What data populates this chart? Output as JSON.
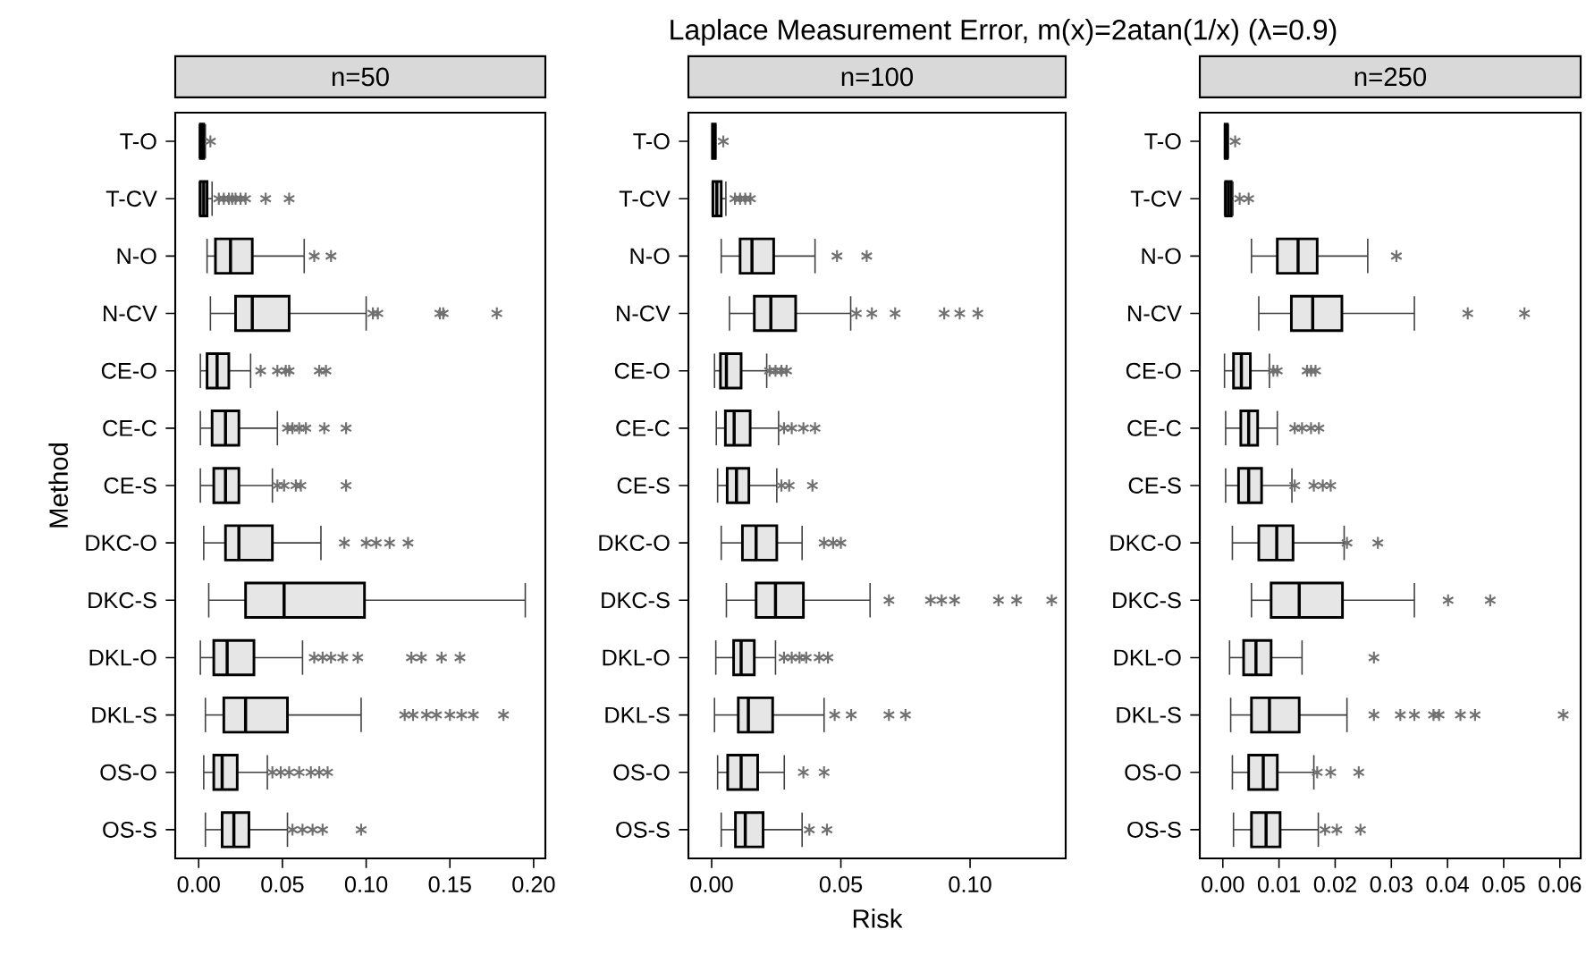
{
  "chart_data": [
    {
      "type": "box",
      "subtitle": "n=50",
      "ylabel": "Method",
      "orientation": "horizontal",
      "color": "#e6e6e6",
      "marker": "star",
      "categories": [
        "T-O",
        "T-CV",
        "N-O",
        "N-CV",
        "CE-O",
        "CE-C",
        "CE-S",
        "DKC-O",
        "DKC-S",
        "DKL-O",
        "DKL-S",
        "OS-O",
        "OS-S"
      ],
      "xlim": [
        -0.014,
        0.207
      ],
      "xticks": [
        {
          "value": 0,
          "label": "0.00"
        },
        {
          "value": 0.05,
          "label": "0.05"
        },
        {
          "value": 0.1,
          "label": "0.10"
        },
        {
          "value": 0.15,
          "label": "0.15"
        },
        {
          "value": 0.2,
          "label": "0.20"
        }
      ],
      "boxes": [
        {
          "low": 0.0003,
          "q1": 0.001,
          "median": 0.002,
          "q3": 0.003,
          "high": 0.004,
          "outliers": [
            0.007
          ]
        },
        {
          "low": 0.0003,
          "q1": 0.001,
          "median": 0.003,
          "q3": 0.005,
          "high": 0.008,
          "outliers": [
            0.012,
            0.015,
            0.018,
            0.02,
            0.022,
            0.025,
            0.028,
            0.04,
            0.054
          ]
        },
        {
          "low": 0.005,
          "q1": 0.01,
          "median": 0.019,
          "q3": 0.032,
          "high": 0.063,
          "outliers": [
            0.069,
            0.079
          ]
        },
        {
          "low": 0.007,
          "q1": 0.022,
          "median": 0.032,
          "q3": 0.054,
          "high": 0.1,
          "outliers": [
            0.104,
            0.107,
            0.144,
            0.146,
            0.178
          ]
        },
        {
          "low": 0.001,
          "q1": 0.005,
          "median": 0.011,
          "q3": 0.018,
          "high": 0.031,
          "outliers": [
            0.037,
            0.047,
            0.052,
            0.054,
            0.072,
            0.076
          ]
        },
        {
          "low": 0.001,
          "q1": 0.008,
          "median": 0.016,
          "q3": 0.024,
          "high": 0.047,
          "outliers": [
            0.053,
            0.056,
            0.06,
            0.064,
            0.075,
            0.088
          ]
        },
        {
          "low": 0.001,
          "q1": 0.009,
          "median": 0.016,
          "q3": 0.024,
          "high": 0.044,
          "outliers": [
            0.047,
            0.051,
            0.058,
            0.061,
            0.088
          ]
        },
        {
          "low": 0.003,
          "q1": 0.016,
          "median": 0.024,
          "q3": 0.044,
          "high": 0.073,
          "outliers": [
            0.087,
            0.1,
            0.106,
            0.114,
            0.125
          ]
        },
        {
          "low": 0.006,
          "q1": 0.028,
          "median": 0.051,
          "q3": 0.099,
          "high": 0.195
        },
        {
          "low": 0.001,
          "q1": 0.009,
          "median": 0.017,
          "q3": 0.033,
          "high": 0.062,
          "outliers": [
            0.069,
            0.074,
            0.079,
            0.086,
            0.095,
            0.127,
            0.133,
            0.145,
            0.156
          ]
        },
        {
          "low": 0.004,
          "q1": 0.015,
          "median": 0.028,
          "q3": 0.053,
          "high": 0.097,
          "outliers": [
            0.123,
            0.128,
            0.136,
            0.142,
            0.15,
            0.157,
            0.164,
            0.182
          ]
        },
        {
          "low": 0.003,
          "q1": 0.009,
          "median": 0.014,
          "q3": 0.023,
          "high": 0.041,
          "outliers": [
            0.044,
            0.049,
            0.054,
            0.06,
            0.067,
            0.072,
            0.077
          ]
        },
        {
          "low": 0.004,
          "q1": 0.014,
          "median": 0.021,
          "q3": 0.03,
          "high": 0.053,
          "outliers": [
            0.056,
            0.062,
            0.068,
            0.074,
            0.097
          ]
        }
      ]
    },
    {
      "type": "box",
      "title": "Laplace Measurement Error, m(x)=2atan(1/x) (λ=0.9)",
      "subtitle": "n=100",
      "xlabel": "Risk",
      "orientation": "horizontal",
      "color": "#e6e6e6",
      "marker": "star",
      "categories": [
        "T-O",
        "T-CV",
        "N-O",
        "N-CV",
        "CE-O",
        "CE-C",
        "CE-S",
        "DKC-O",
        "DKC-S",
        "DKL-O",
        "DKL-S",
        "OS-O",
        "OS-S"
      ],
      "xlim": [
        -0.009,
        0.137
      ],
      "xticks": [
        {
          "value": 0,
          "label": "0.00"
        },
        {
          "value": 0.05,
          "label": "0.05"
        },
        {
          "value": 0.1,
          "label": "0.10"
        }
      ],
      "boxes": [
        {
          "low": 0.0002,
          "q1": 0.0003,
          "median": 0.0008,
          "q3": 0.0014,
          "high": 0.0016,
          "outliers": [
            0.0045
          ]
        },
        {
          "low": 0.0002,
          "q1": 0.0005,
          "median": 0.002,
          "q3": 0.0037,
          "high": 0.0055,
          "outliers": [
            0.009,
            0.011,
            0.013,
            0.015
          ]
        },
        {
          "low": 0.0037,
          "q1": 0.011,
          "median": 0.0156,
          "q3": 0.024,
          "high": 0.04,
          "outliers": [
            0.0485,
            0.06
          ]
        },
        {
          "low": 0.0069,
          "q1": 0.0165,
          "median": 0.0229,
          "q3": 0.0325,
          "high": 0.0538,
          "outliers": [
            0.056,
            0.062,
            0.071,
            0.09,
            0.096,
            0.103
          ]
        },
        {
          "low": 0.0011,
          "q1": 0.0034,
          "median": 0.0057,
          "q3": 0.0114,
          "high": 0.0213,
          "outliers": [
            0.0224,
            0.0247,
            0.027,
            0.029
          ]
        },
        {
          "low": 0.0018,
          "q1": 0.0053,
          "median": 0.0087,
          "q3": 0.0149,
          "high": 0.0259,
          "outliers": [
            0.028,
            0.031,
            0.0355,
            0.04
          ]
        },
        {
          "low": 0.0023,
          "q1": 0.006,
          "median": 0.0096,
          "q3": 0.0144,
          "high": 0.0252,
          "outliers": [
            0.027,
            0.03,
            0.039
          ]
        },
        {
          "low": 0.0037,
          "q1": 0.0119,
          "median": 0.0172,
          "q3": 0.0252,
          "high": 0.035,
          "outliers": [
            0.0435,
            0.047,
            0.05
          ]
        },
        {
          "low": 0.0057,
          "q1": 0.0172,
          "median": 0.0247,
          "q3": 0.0355,
          "high": 0.0613,
          "outliers": [
            0.0686,
            0.0847,
            0.089,
            0.094,
            0.111,
            0.118,
            0.1316
          ]
        },
        {
          "low": 0.0016,
          "q1": 0.0085,
          "median": 0.0114,
          "q3": 0.0165,
          "high": 0.0247,
          "outliers": [
            0.028,
            0.031,
            0.034,
            0.0366,
            0.0416,
            0.045
          ]
        },
        {
          "low": 0.0011,
          "q1": 0.0103,
          "median": 0.0142,
          "q3": 0.0236,
          "high": 0.0435,
          "outliers": [
            0.0476,
            0.054,
            0.0686,
            0.075
          ]
        },
        {
          "low": 0.0023,
          "q1": 0.0062,
          "median": 0.0114,
          "q3": 0.0178,
          "high": 0.0281,
          "outliers": [
            0.0355,
            0.0435
          ]
        },
        {
          "low": 0.0037,
          "q1": 0.0092,
          "median": 0.013,
          "q3": 0.0199,
          "high": 0.035,
          "outliers": [
            0.0378,
            0.0446
          ]
        }
      ]
    },
    {
      "type": "box",
      "subtitle": "n=250",
      "orientation": "horizontal",
      "color": "#e6e6e6",
      "marker": "star",
      "categories": [
        "T-O",
        "T-CV",
        "N-O",
        "N-CV",
        "CE-O",
        "CE-C",
        "CE-S",
        "DKC-O",
        "DKC-S",
        "DKL-O",
        "DKL-S",
        "OS-O",
        "OS-S"
      ],
      "xlim": [
        -0.0041,
        0.0637
      ],
      "xticks": [
        {
          "value": 0,
          "label": "0.00"
        },
        {
          "value": 0.01,
          "label": "0.01"
        },
        {
          "value": 0.02,
          "label": "0.02"
        },
        {
          "value": 0.03,
          "label": "0.03"
        },
        {
          "value": 0.04,
          "label": "0.04"
        },
        {
          "value": 0.05,
          "label": "0.05"
        },
        {
          "value": 0.06,
          "label": "0.06"
        }
      ],
      "boxes": [
        {
          "low": 0.0003,
          "q1": 0.0004,
          "median": 0.0006,
          "q3": 0.0008,
          "high": 0.001,
          "outliers": [
            0.0022
          ]
        },
        {
          "low": 0.0003,
          "q1": 0.0005,
          "median": 0.001,
          "q3": 0.0015,
          "high": 0.0018,
          "outliers": [
            0.003,
            0.0046
          ]
        },
        {
          "low": 0.0051,
          "q1": 0.0097,
          "median": 0.0134,
          "q3": 0.0168,
          "high": 0.0258,
          "outliers": [
            0.0309
          ]
        },
        {
          "low": 0.0064,
          "q1": 0.0122,
          "median": 0.016,
          "q3": 0.0212,
          "high": 0.0341,
          "outliers": [
            0.0436,
            0.0537
          ]
        },
        {
          "low": 0.0003,
          "q1": 0.0019,
          "median": 0.0033,
          "q3": 0.0049,
          "high": 0.0083,
          "outliers": [
            0.009,
            0.0097,
            0.015,
            0.0157,
            0.0165
          ]
        },
        {
          "low": 0.0005,
          "q1": 0.0032,
          "median": 0.0046,
          "q3": 0.0062,
          "high": 0.0097,
          "outliers": [
            0.0128,
            0.0141,
            0.0157,
            0.0171
          ]
        },
        {
          "low": 0.0005,
          "q1": 0.0028,
          "median": 0.0046,
          "q3": 0.0069,
          "high": 0.0123,
          "outliers": [
            0.0128,
            0.0162,
            0.0178,
            0.0192
          ]
        },
        {
          "low": 0.0017,
          "q1": 0.0064,
          "median": 0.0096,
          "q3": 0.0125,
          "high": 0.0216,
          "outliers": [
            0.0221,
            0.0276
          ]
        },
        {
          "low": 0.0051,
          "q1": 0.0086,
          "median": 0.0136,
          "q3": 0.0213,
          "high": 0.0341,
          "outliers": [
            0.0401,
            0.0476
          ]
        },
        {
          "low": 0.0012,
          "q1": 0.0037,
          "median": 0.0059,
          "q3": 0.0086,
          "high": 0.0141,
          "outliers": [
            0.0269
          ]
        },
        {
          "low": 0.0014,
          "q1": 0.0051,
          "median": 0.0083,
          "q3": 0.0136,
          "high": 0.0221,
          "outliers": [
            0.0269,
            0.0316,
            0.0341,
            0.0375,
            0.0385,
            0.0423,
            0.0449,
            0.0606
          ]
        },
        {
          "low": 0.0017,
          "q1": 0.0046,
          "median": 0.0072,
          "q3": 0.0097,
          "high": 0.0162,
          "outliers": [
            0.0168,
            0.0192,
            0.0242
          ]
        },
        {
          "low": 0.0019,
          "q1": 0.0051,
          "median": 0.0077,
          "q3": 0.0102,
          "high": 0.017,
          "outliers": [
            0.0182,
            0.0203,
            0.0245
          ]
        }
      ]
    }
  ]
}
